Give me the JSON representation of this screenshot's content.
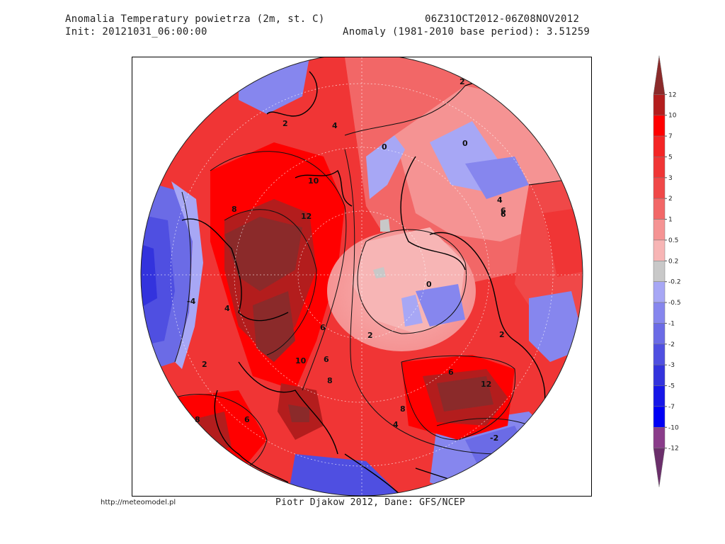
{
  "header": {
    "title": "Anomalia Temperatury powietrza (2m, st. C)",
    "init": "Init: 20121031_06:00:00",
    "period": "06Z31OCT2012-06Z08NOV2012",
    "anomaly": "Anomaly (1981-2010 base period): 3.51259"
  },
  "footer": {
    "url": "http://meteomodel.pl",
    "credit": "Piotr Djakow 2012, Dane: GFS/NCEP"
  },
  "colorbar": {
    "levels": [
      "12",
      "10",
      "7",
      "5",
      "3",
      "2",
      "1",
      "0.5",
      "0.2",
      "-0.2",
      "-0.5",
      "-1",
      "-2",
      "-3",
      "-5",
      "-7",
      "-10",
      "-12"
    ],
    "colors": [
      "#8b2a2a",
      "#b31d1d",
      "#ff0000",
      "#f42525",
      "#f03535",
      "#f04848",
      "#f26767",
      "#f59393",
      "#f7b5b5",
      "#c8c8c8",
      "#a7a7f5",
      "#8686ee",
      "#6b6be6",
      "#4f4fe1",
      "#3333dd",
      "#1717e8",
      "#0000f5",
      "#8a3c8a",
      "#6b2f6b"
    ]
  },
  "map": {
    "contour_labels": [
      "2",
      "4",
      "10",
      "8",
      "12",
      "6",
      "4",
      "0",
      "-4",
      "2",
      "6",
      "10",
      "8",
      "6",
      "8",
      "6",
      "2",
      "12",
      "6",
      "8",
      "4",
      "2",
      "-2",
      "0",
      "2",
      "0",
      "4",
      "6"
    ]
  }
}
